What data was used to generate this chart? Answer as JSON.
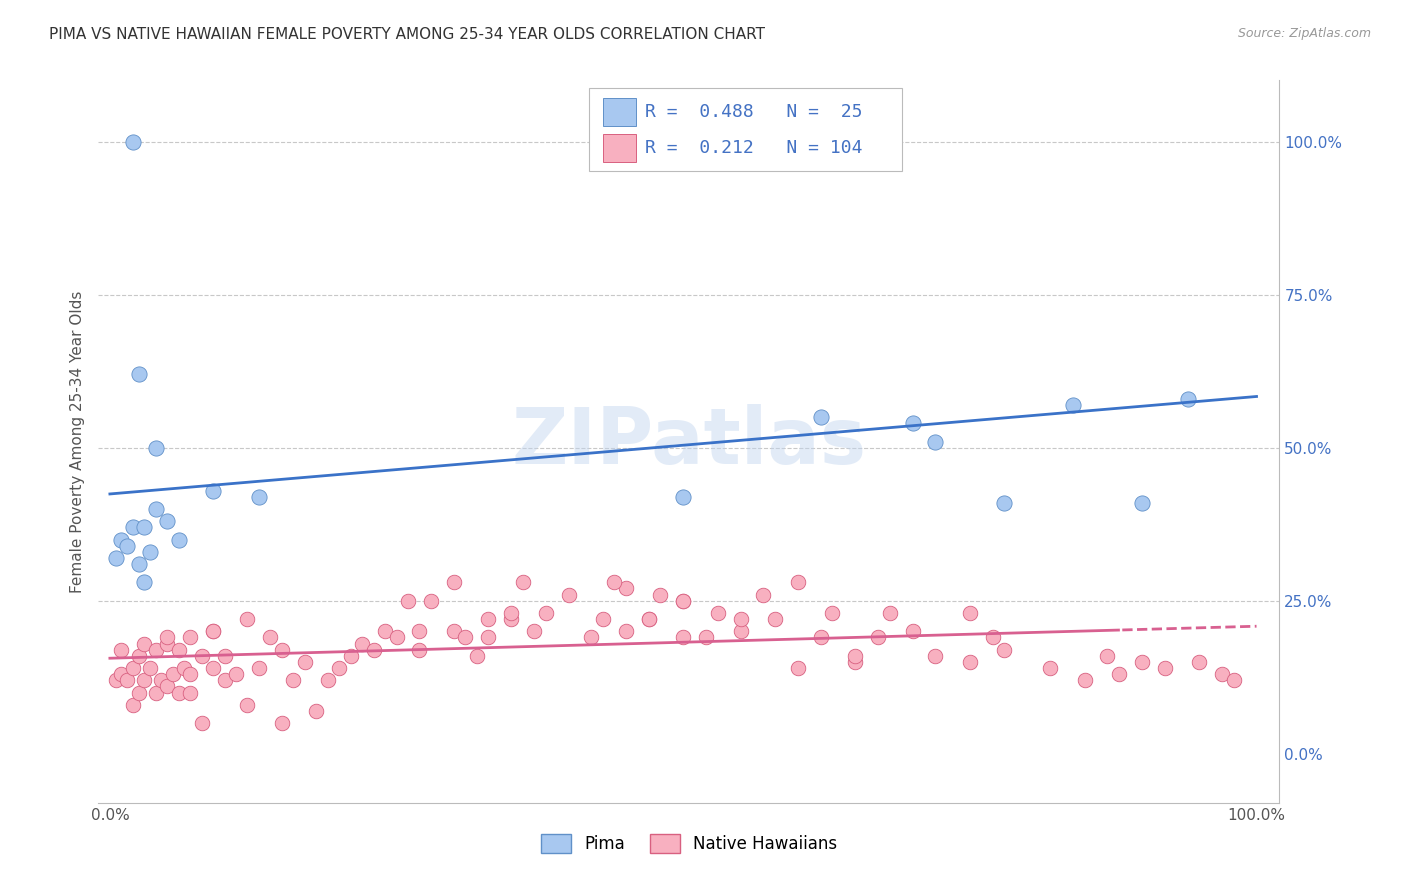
{
  "title": "PIMA VS NATIVE HAWAIIAN FEMALE POVERTY AMONG 25-34 YEAR OLDS CORRELATION CHART",
  "source": "Source: ZipAtlas.com",
  "ylabel": "Female Poverty Among 25-34 Year Olds",
  "xlim": [
    -0.01,
    1.02
  ],
  "ylim": [
    -0.08,
    1.1
  ],
  "grid_color": "#c8c8c8",
  "watermark": "ZIPatlas",
  "pima_color": "#a8c8f0",
  "pima_edge_color": "#6090c8",
  "hawaiian_color": "#f8b0c0",
  "hawaiian_edge_color": "#d86080",
  "pima_R": 0.488,
  "pima_N": 25,
  "hawaiian_R": 0.212,
  "hawaiian_N": 104,
  "legend_text_color": "#4472c4",
  "right_tick_color": "#4472c4",
  "pima_line_color": "#3a72c8",
  "hawaiian_line_color": "#d86090",
  "pima_scatter_x": [
    0.005,
    0.01,
    0.015,
    0.02,
    0.025,
    0.03,
    0.035,
    0.04,
    0.05,
    0.06,
    0.09,
    0.13,
    0.5,
    0.62,
    0.7,
    0.72,
    0.78,
    0.84,
    0.9,
    0.94,
    0.6,
    0.02,
    0.025,
    0.04,
    0.03
  ],
  "pima_scatter_y": [
    0.32,
    0.35,
    0.34,
    0.37,
    0.31,
    0.28,
    0.33,
    0.4,
    0.38,
    0.35,
    0.43,
    0.42,
    0.42,
    0.55,
    0.54,
    0.51,
    0.41,
    0.57,
    0.41,
    0.58,
    1.0,
    1.0,
    0.62,
    0.5,
    0.37
  ],
  "hawaiian_scatter_x": [
    0.005,
    0.01,
    0.01,
    0.015,
    0.02,
    0.02,
    0.025,
    0.025,
    0.03,
    0.03,
    0.035,
    0.04,
    0.04,
    0.045,
    0.05,
    0.05,
    0.055,
    0.06,
    0.06,
    0.065,
    0.07,
    0.07,
    0.08,
    0.08,
    0.09,
    0.09,
    0.1,
    0.1,
    0.11,
    0.12,
    0.12,
    0.13,
    0.14,
    0.15,
    0.15,
    0.16,
    0.17,
    0.18,
    0.19,
    0.2,
    0.21,
    0.22,
    0.23,
    0.24,
    0.25,
    0.26,
    0.27,
    0.28,
    0.3,
    0.31,
    0.32,
    0.33,
    0.35,
    0.36,
    0.37,
    0.38,
    0.4,
    0.42,
    0.43,
    0.45,
    0.47,
    0.48,
    0.5,
    0.52,
    0.53,
    0.55,
    0.57,
    0.58,
    0.6,
    0.62,
    0.63,
    0.65,
    0.67,
    0.68,
    0.7,
    0.72,
    0.75,
    0.77,
    0.78,
    0.82,
    0.85,
    0.87,
    0.88,
    0.9,
    0.92,
    0.95,
    0.97,
    0.98,
    0.27,
    0.35,
    0.45,
    0.5,
    0.55,
    0.6,
    0.65,
    0.75,
    0.05,
    0.07,
    0.09,
    0.3,
    0.33,
    0.44,
    0.47,
    0.5
  ],
  "hawaiian_scatter_y": [
    0.12,
    0.13,
    0.17,
    0.12,
    0.14,
    0.08,
    0.1,
    0.16,
    0.12,
    0.18,
    0.14,
    0.1,
    0.17,
    0.12,
    0.11,
    0.18,
    0.13,
    0.1,
    0.17,
    0.14,
    0.1,
    0.13,
    0.05,
    0.16,
    0.14,
    0.2,
    0.16,
    0.12,
    0.13,
    0.08,
    0.22,
    0.14,
    0.19,
    0.05,
    0.17,
    0.12,
    0.15,
    0.07,
    0.12,
    0.14,
    0.16,
    0.18,
    0.17,
    0.2,
    0.19,
    0.25,
    0.17,
    0.25,
    0.2,
    0.19,
    0.16,
    0.22,
    0.22,
    0.28,
    0.2,
    0.23,
    0.26,
    0.19,
    0.22,
    0.2,
    0.22,
    0.26,
    0.25,
    0.19,
    0.23,
    0.2,
    0.26,
    0.22,
    0.28,
    0.19,
    0.23,
    0.15,
    0.19,
    0.23,
    0.2,
    0.16,
    0.15,
    0.19,
    0.17,
    0.14,
    0.12,
    0.16,
    0.13,
    0.15,
    0.14,
    0.15,
    0.13,
    0.12,
    0.2,
    0.23,
    0.27,
    0.19,
    0.22,
    0.14,
    0.16,
    0.23,
    0.19,
    0.19,
    0.2,
    0.28,
    0.19,
    0.28,
    0.22,
    0.25
  ],
  "background_color": "#ffffff",
  "title_fontsize": 11,
  "axis_label_fontsize": 11,
  "tick_fontsize": 11
}
